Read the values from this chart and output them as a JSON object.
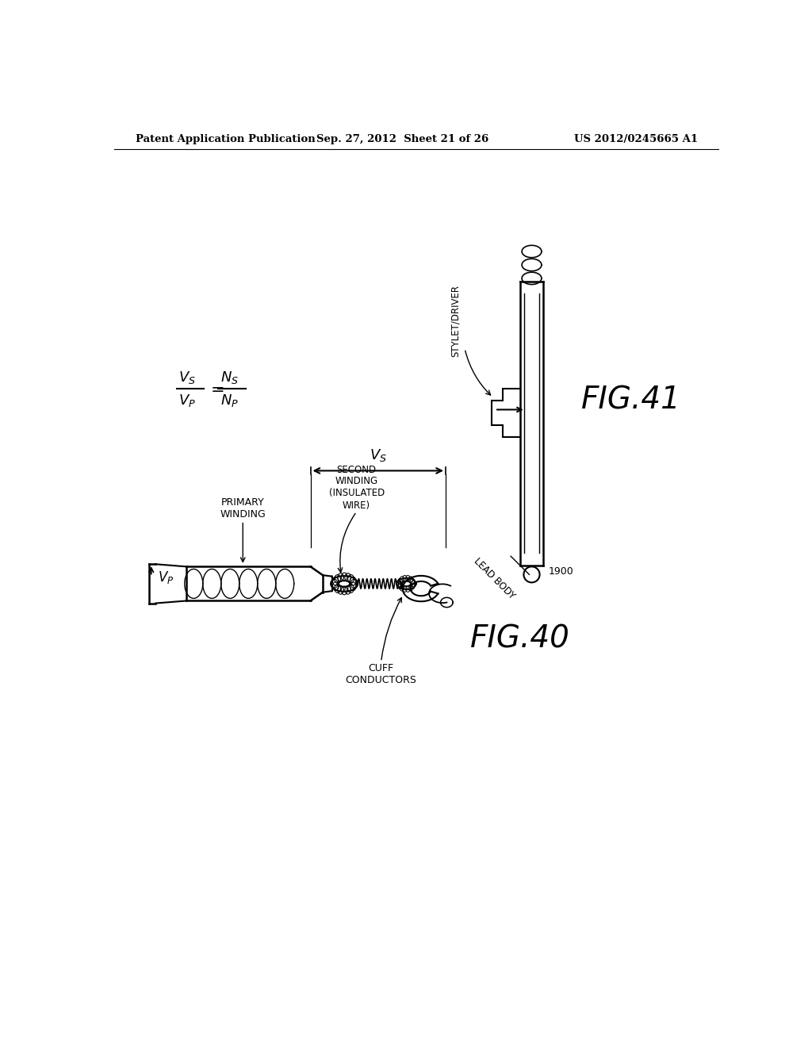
{
  "background_color": "#ffffff",
  "header_left": "Patent Application Publication",
  "header_mid": "Sep. 27, 2012  Sheet 21 of 26",
  "header_right": "US 2012/0245665 A1",
  "fig_width": 10.24,
  "fig_height": 13.2,
  "dpi": 100
}
